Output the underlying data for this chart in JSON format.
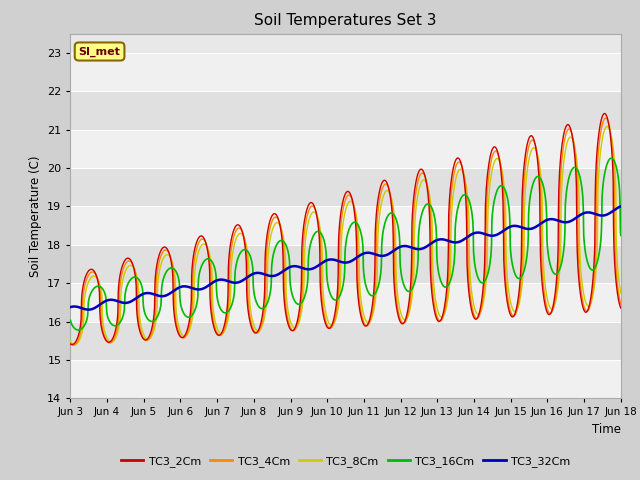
{
  "title": "Soil Temperatures Set 3",
  "xlabel": "Time",
  "ylabel": "Soil Temperature (C)",
  "ylim": [
    14.0,
    23.5
  ],
  "yticks": [
    14.0,
    15.0,
    16.0,
    17.0,
    18.0,
    19.0,
    20.0,
    21.0,
    22.0,
    23.0
  ],
  "tick_labels": [
    "Jun 3",
    "Jun 4",
    "Jun 5",
    "Jun 6",
    "Jun 7",
    "Jun 8",
    "Jun 9",
    "Jun 10",
    "Jun 11",
    "Jun 12",
    "Jun 13",
    "Jun 14",
    "Jun 15",
    "Jun 16",
    "Jun 17",
    "Jun 18"
  ],
  "n_days": 15,
  "colors": {
    "TC3_2Cm": "#cc0000",
    "TC3_4Cm": "#ff8800",
    "TC3_8Cm": "#cccc00",
    "TC3_16Cm": "#00bb00",
    "TC3_32Cm": "#0000bb"
  },
  "plot_bg": "#e8e8e8",
  "fig_bg": "#d0d0d0",
  "annotation_text": "SI_met",
  "annotation_bg": "#ffff88",
  "annotation_border": "#886600",
  "annotation_text_color": "#660000"
}
